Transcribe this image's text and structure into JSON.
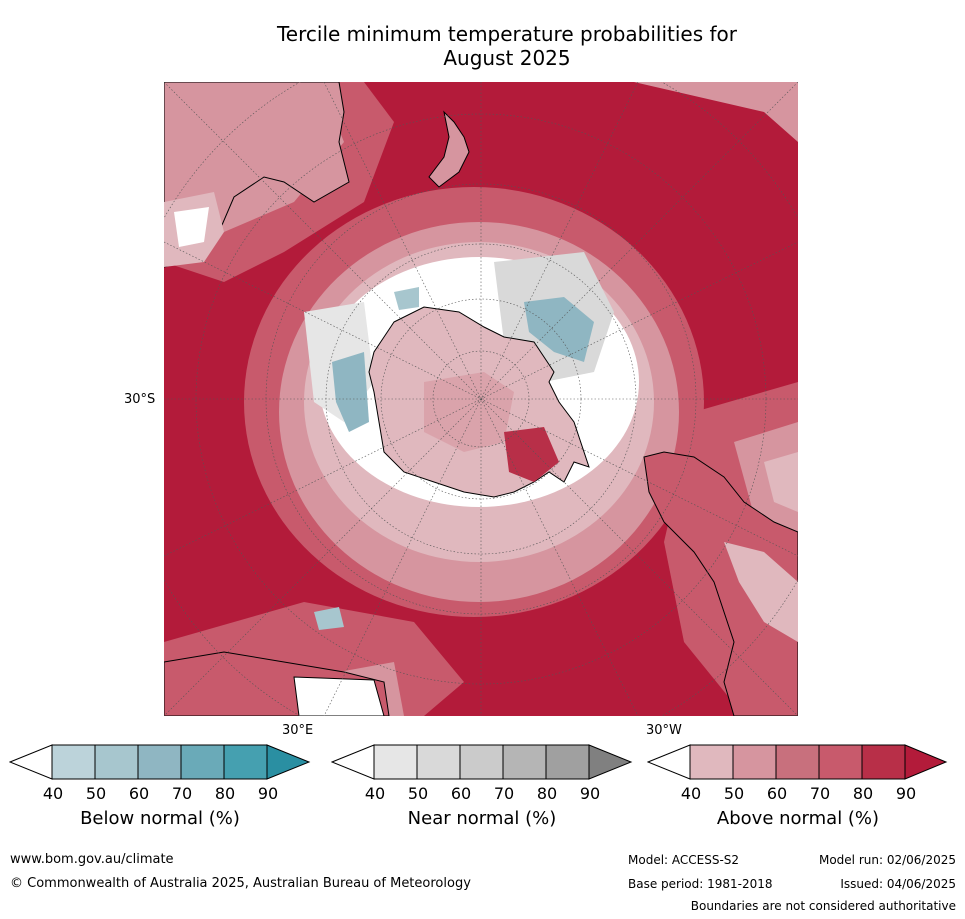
{
  "title": "Tercile minimum temperature probabilities for\nAugust 2025",
  "map": {
    "lat_label": "30°S",
    "lon_labels": [
      "30°E",
      "30°W"
    ],
    "colors": {
      "ocean_dark": "#b31b3a",
      "above_40": "#e0b8be",
      "above_50": "#d6959f",
      "above_60": "#c8707d",
      "above_70": "#c85a6c",
      "above_80": "#b82f48",
      "near": "#d9d9d9",
      "below_60": "#8fb6c2",
      "white": "#ffffff"
    }
  },
  "colorbars": [
    {
      "label": "Below normal (%)",
      "ticks": [
        "40",
        "50",
        "60",
        "70",
        "80",
        "90"
      ],
      "colors": [
        "#ffffff",
        "#bcd3da",
        "#a7c6ce",
        "#8fb6c2",
        "#6aaab8",
        "#45a0b0",
        "#2a8fa2"
      ]
    },
    {
      "label": "Near normal (%)",
      "ticks": [
        "40",
        "50",
        "60",
        "70",
        "80",
        "90"
      ],
      "colors": [
        "#ffffff",
        "#e6e6e6",
        "#d9d9d9",
        "#cbcbcb",
        "#b5b5b5",
        "#a0a0a0",
        "#808080"
      ]
    },
    {
      "label": "Above normal (%)",
      "ticks": [
        "40",
        "50",
        "60",
        "70",
        "80",
        "90"
      ],
      "colors": [
        "#ffffff",
        "#e0b8be",
        "#d6959f",
        "#c8707d",
        "#c85a6c",
        "#b82f48",
        "#b31b3a"
      ]
    }
  ],
  "footer": {
    "website": "www.bom.gov.au/climate",
    "copyright": "© Commonwealth of Australia 2025, Australian Bureau of Meteorology",
    "model": "Model: ACCESS-S2",
    "base_period": "Base period: 1981-2018",
    "model_run": "Model run: 02/06/2025",
    "issued": "Issued: 04/06/2025",
    "disclaimer": "Boundaries are not considered authoritative"
  }
}
